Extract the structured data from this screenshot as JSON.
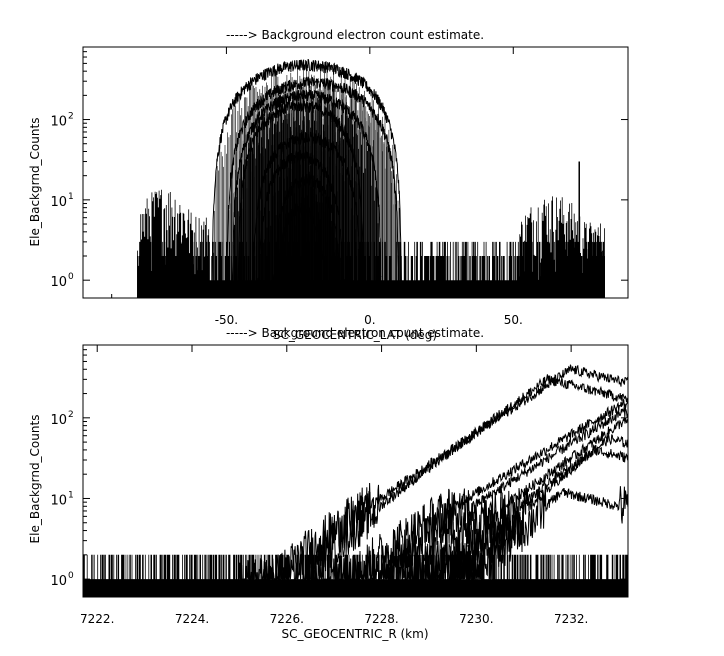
{
  "chart_data": [
    {
      "type": "line",
      "title": "-----> Background electron count estimate.",
      "xlabel": "SC_GEOCENTRIC_LAT (deg)",
      "ylabel": "Ele_Backgrnd_Counts",
      "xlim": [
        -100,
        90
      ],
      "ylim": [
        0.6,
        800
      ],
      "yscale": "log",
      "grid": false,
      "x_ticks": [
        {
          "value": -50,
          "label": "-50."
        },
        {
          "value": 0,
          "label": "0."
        },
        {
          "value": 50,
          "label": "50."
        }
      ],
      "y_ticks": [
        {
          "value": 1,
          "base": "10",
          "exp": "0"
        },
        {
          "value": 10,
          "base": "10",
          "exp": "1"
        },
        {
          "value": 100,
          "base": "10",
          "exp": "2"
        }
      ],
      "noise_floor": {
        "x_range": [
          -81,
          82
        ],
        "levels": [
          1,
          2,
          3
        ]
      },
      "background_bands": [
        {
          "x_range": [
            -81,
            -56
          ],
          "peak": 15
        },
        {
          "x_range": [
            52,
            82
          ],
          "peak": 12
        }
      ],
      "spike": {
        "x": 73,
        "y": 30
      },
      "series": [
        {
          "center": -22,
          "half_width": 33,
          "peak": 480
        },
        {
          "center": -20,
          "half_width": 30,
          "peak": 290
        },
        {
          "center": -22,
          "half_width": 26,
          "peak": 200
        },
        {
          "center": -24,
          "half_width": 22,
          "peak": 150
        },
        {
          "center": -22,
          "half_width": 19,
          "peak": 60
        },
        {
          "center": -24,
          "half_width": 15,
          "peak": 35
        },
        {
          "center": -22,
          "half_width": 12,
          "peak": 18
        },
        {
          "center": -24,
          "half_width": 9,
          "peak": 8
        }
      ]
    },
    {
      "type": "line",
      "title": "-----> Background electron count estimate.",
      "xlabel": "SC_GEOCENTRIC_R (km)",
      "ylabel": "Ele_Backgrnd_Counts",
      "xlim": [
        7221.7,
        7233.2
      ],
      "ylim": [
        0.6,
        800
      ],
      "yscale": "log",
      "grid": false,
      "x_ticks": [
        {
          "value": 7222,
          "label": "7222."
        },
        {
          "value": 7224,
          "label": "7224."
        },
        {
          "value": 7226,
          "label": "7226."
        },
        {
          "value": 7228,
          "label": "7228."
        },
        {
          "value": 7230,
          "label": "7230."
        },
        {
          "value": 7232,
          "label": "7232."
        }
      ],
      "y_ticks": [
        {
          "value": 1,
          "base": "10",
          "exp": "0"
        },
        {
          "value": 10,
          "base": "10",
          "exp": "1"
        },
        {
          "value": 100,
          "base": "10",
          "exp": "2"
        }
      ],
      "noise_floor": {
        "x_range": [
          7221.7,
          7233.2
        ],
        "levels": [
          1,
          2
        ]
      },
      "series": [
        {
          "start": 7225.0,
          "end": 7233.2,
          "peak_x": 7232.0,
          "peak": 400
        },
        {
          "start": 7225.5,
          "end": 7233.2,
          "peak_x": 7231.5,
          "peak": 300
        },
        {
          "start": 7226.5,
          "end": 7233.2,
          "peak_x": 7233.1,
          "peak": 150
        },
        {
          "start": 7227.0,
          "end": 7233.2,
          "peak_x": 7233.1,
          "peak": 120
        },
        {
          "start": 7228.0,
          "end": 7233.2,
          "peak_x": 7233.1,
          "peak": 90
        },
        {
          "start": 7228.5,
          "end": 7233.2,
          "peak_x": 7232.8,
          "peak": 55
        },
        {
          "start": 7229.0,
          "end": 7233.2,
          "peak_x": 7232.5,
          "peak": 40
        },
        {
          "start": 7229.5,
          "end": 7233.2,
          "peak_x": 7231.8,
          "peak": 12
        }
      ]
    }
  ]
}
